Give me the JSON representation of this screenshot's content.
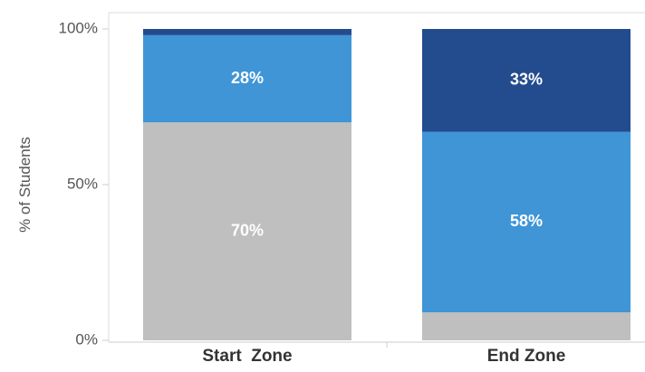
{
  "chart_data": {
    "type": "bar",
    "stacked": true,
    "title": "",
    "ylabel": "% of Students",
    "ylim": [
      0,
      100
    ],
    "yticks": [
      {
        "value": 0,
        "label": "0%"
      },
      {
        "value": 50,
        "label": "50%"
      },
      {
        "value": 100,
        "label": "100%"
      }
    ],
    "categories": [
      "Start  Zone",
      "End Zone"
    ],
    "series": [
      {
        "color": "#bfbfbf",
        "values": [
          70,
          9
        ],
        "labels": [
          "70%",
          ""
        ]
      },
      {
        "color": "#3f95d6",
        "values": [
          28,
          58
        ],
        "labels": [
          "28%",
          "58%"
        ]
      },
      {
        "color": "#234c8f",
        "values": [
          2,
          33
        ],
        "labels": [
          "",
          "33%"
        ]
      }
    ]
  }
}
